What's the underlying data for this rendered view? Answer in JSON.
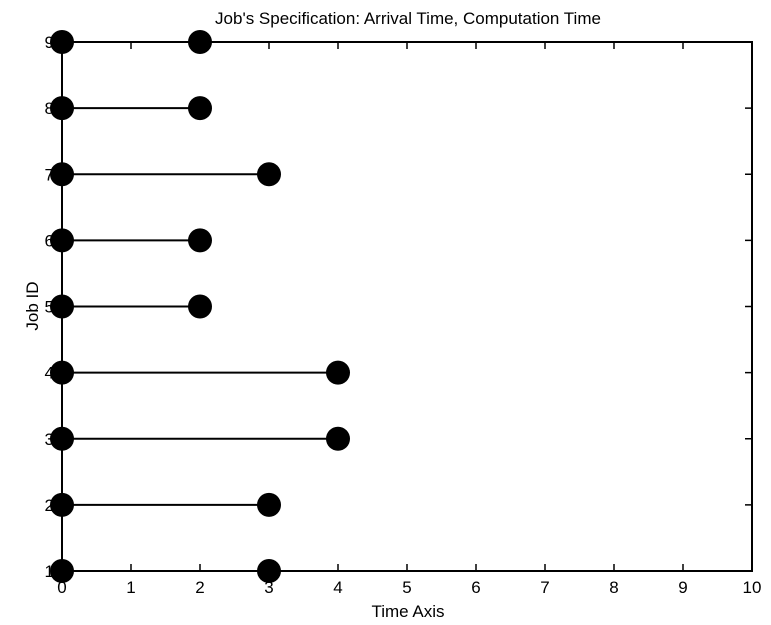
{
  "chart_data": {
    "type": "scatter",
    "title": "Job's Specification: Arrival Time, Computation Time",
    "xlabel": "Time Axis",
    "ylabel": "Job ID",
    "xlim": [
      0,
      10
    ],
    "ylim": [
      1,
      9
    ],
    "x_ticks": [
      "0",
      "1",
      "2",
      "3",
      "4",
      "5",
      "6",
      "7",
      "8",
      "9",
      "10"
    ],
    "y_ticks": [
      "1",
      "2",
      "3",
      "4",
      "5",
      "6",
      "7",
      "8",
      "9"
    ],
    "jobs": [
      {
        "job_id": 1,
        "arrival_time": 0,
        "computation_time": 3
      },
      {
        "job_id": 2,
        "arrival_time": 0,
        "computation_time": 3
      },
      {
        "job_id": 3,
        "arrival_time": 0,
        "computation_time": 4
      },
      {
        "job_id": 4,
        "arrival_time": 0,
        "computation_time": 4
      },
      {
        "job_id": 5,
        "arrival_time": 0,
        "computation_time": 2
      },
      {
        "job_id": 6,
        "arrival_time": 0,
        "computation_time": 2
      },
      {
        "job_id": 7,
        "arrival_time": 0,
        "computation_time": 3
      },
      {
        "job_id": 8,
        "arrival_time": 0,
        "computation_time": 2
      },
      {
        "job_id": 9,
        "arrival_time": 0,
        "computation_time": 2
      }
    ],
    "grid": false,
    "marker_color": "#000000",
    "line_color": "#000000"
  }
}
